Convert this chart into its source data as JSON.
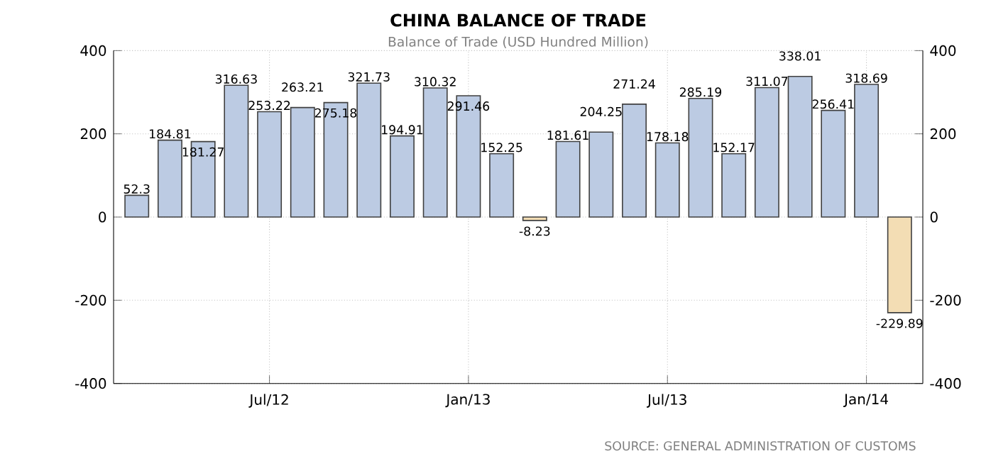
{
  "chart_data": {
    "type": "bar",
    "title": "CHINA BALANCE OF TRADE",
    "subtitle": "Balance of Trade (USD Hundred Million)",
    "categories": [
      null,
      null,
      null,
      null,
      "Jul/12",
      null,
      null,
      null,
      null,
      null,
      "Jan/13",
      null,
      null,
      null,
      null,
      null,
      "Jul/13",
      null,
      null,
      null,
      null,
      null,
      "Jan/14",
      null
    ],
    "values": [
      52.3,
      184.81,
      181.27,
      316.63,
      253.22,
      263.21,
      275.18,
      321.73,
      194.91,
      310.32,
      291.46,
      152.25,
      -8.23,
      181.61,
      204.25,
      271.24,
      178.18,
      285.19,
      152.17,
      311.07,
      338.01,
      256.41,
      318.69,
      -229.89
    ],
    "colors": [
      "#bccbe3",
      "#bccbe3",
      "#bccbe3",
      "#bccbe3",
      "#bccbe3",
      "#bccbe3",
      "#bccbe3",
      "#bccbe3",
      "#bccbe3",
      "#bccbe3",
      "#bccbe3",
      "#bccbe3",
      "#f3ddb4",
      "#bccbe3",
      "#bccbe3",
      "#bccbe3",
      "#bccbe3",
      "#bccbe3",
      "#bccbe3",
      "#bccbe3",
      "#bccbe3",
      "#bccbe3",
      "#bccbe3",
      "#f3ddb4"
    ],
    "ylim": [
      -400,
      400
    ],
    "yticks": [
      -400,
      -200,
      0,
      200,
      400
    ],
    "y2lim": [
      -400,
      400
    ],
    "y2ticks": [
      -400,
      -200,
      0,
      200,
      400
    ],
    "grid": true,
    "data_labels": true,
    "annotations": [
      "SOURCE: GENERAL ADMINISTRATION OF CUSTOMS"
    ]
  }
}
